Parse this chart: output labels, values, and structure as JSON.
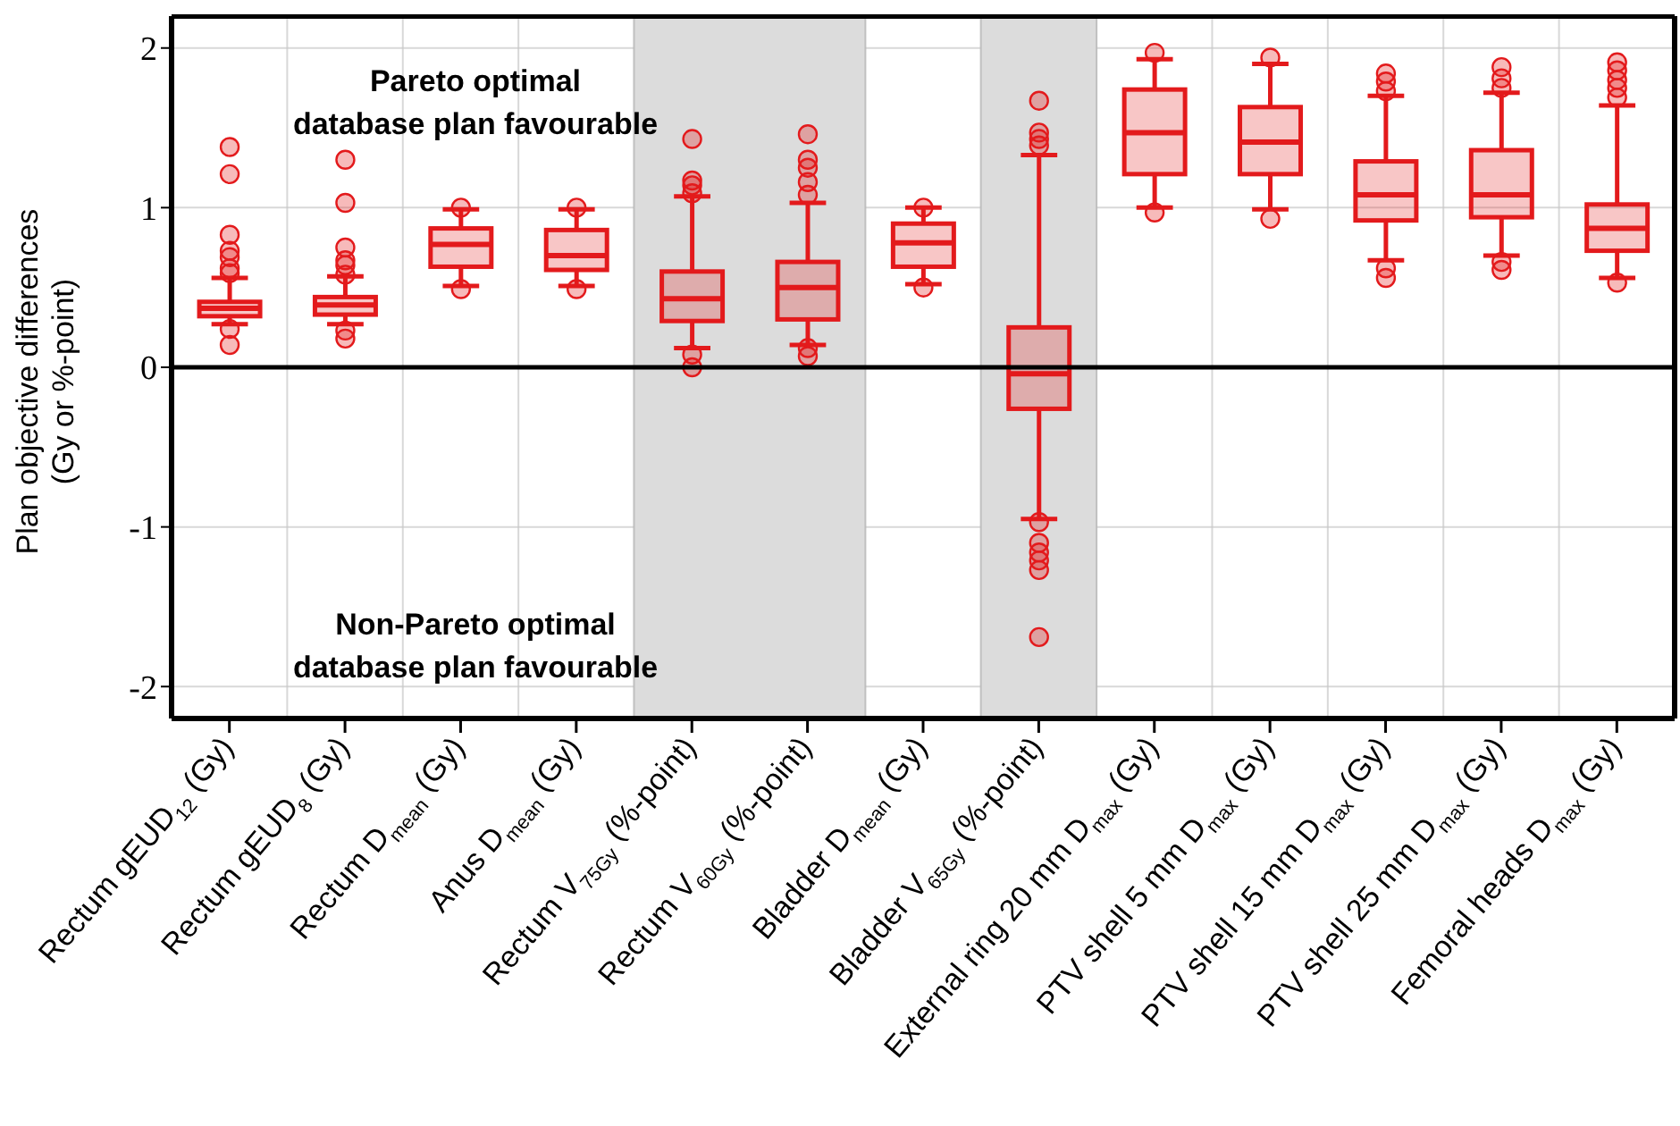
{
  "chart_data": {
    "type": "box",
    "ylabel": "Plan objective differences\n(Gy or %-point)",
    "categories": [
      "Rectum gEUD$_{12}$ (Gy)",
      "Rectum gEUD$_{8}$ (Gy)",
      "Rectum D$_{mean}$ (Gy)",
      "Anus D$_{mean}$ (Gy)",
      "Rectum V$_{75Gy}$ (%-point)",
      "Rectum V$_{60Gy}$ (%-point)",
      "Bladder D$_{mean}$ (Gy)",
      "Bladder V$_{65Gy}$ (%-point)",
      "External ring 20 mm D$_{max}$ (Gy)",
      "PTV shell 5 mm D$_{max}$ (Gy)",
      "PTV shell 15 mm D$_{max}$ (Gy)",
      "PTV shell 25 mm D$_{max}$ (Gy)",
      "Femoral heads D$_{max}$ (Gy)"
    ],
    "series": [
      {
        "color": "#e31a1c",
        "boxes": [
          {
            "low": 0.27,
            "q1": 0.32,
            "median": 0.37,
            "q3": 0.41,
            "high": 0.56,
            "outliers": [
              1.38,
              1.21,
              0.83,
              0.73,
              0.69,
              0.62,
              0.59,
              0.24,
              0.14
            ]
          },
          {
            "low": 0.27,
            "q1": 0.33,
            "median": 0.39,
            "q3": 0.44,
            "high": 0.57,
            "outliers": [
              1.3,
              1.03,
              0.75,
              0.67,
              0.64,
              0.58,
              0.23,
              0.18
            ]
          },
          {
            "low": 0.51,
            "q1": 0.63,
            "median": 0.77,
            "q3": 0.87,
            "high": 0.99,
            "outliers": [
              1.0,
              0.49
            ]
          },
          {
            "low": 0.51,
            "q1": 0.61,
            "median": 0.7,
            "q3": 0.86,
            "high": 0.99,
            "outliers": [
              1.0,
              0.49
            ]
          },
          {
            "low": 0.12,
            "q1": 0.29,
            "median": 0.43,
            "q3": 0.6,
            "high": 1.07,
            "outliers": [
              1.43,
              1.17,
              1.14,
              1.09,
              0.08,
              0.0
            ]
          },
          {
            "low": 0.14,
            "q1": 0.3,
            "median": 0.5,
            "q3": 0.66,
            "high": 1.03,
            "outliers": [
              1.46,
              1.3,
              1.25,
              1.16,
              1.08,
              0.12,
              0.07
            ]
          },
          {
            "low": 0.52,
            "q1": 0.63,
            "median": 0.78,
            "q3": 0.9,
            "high": 1.0,
            "outliers": [
              1.0,
              0.5
            ]
          },
          {
            "low": -0.95,
            "q1": -0.26,
            "median": -0.04,
            "q3": 0.25,
            "high": 1.33,
            "outliers": [
              1.67,
              1.47,
              1.43,
              1.39,
              -0.97,
              -1.1,
              -1.16,
              -1.21,
              -1.27,
              -1.69
            ]
          },
          {
            "low": 1.0,
            "q1": 1.21,
            "median": 1.47,
            "q3": 1.74,
            "high": 1.93,
            "outliers": [
              1.97,
              0.97
            ]
          },
          {
            "low": 0.99,
            "q1": 1.21,
            "median": 1.41,
            "q3": 1.63,
            "high": 1.9,
            "outliers": [
              1.94,
              0.93
            ]
          },
          {
            "low": 0.67,
            "q1": 0.92,
            "median": 1.08,
            "q3": 1.29,
            "high": 1.7,
            "outliers": [
              1.84,
              1.79,
              1.73,
              0.62,
              0.56
            ]
          },
          {
            "low": 0.7,
            "q1": 0.94,
            "median": 1.08,
            "q3": 1.36,
            "high": 1.72,
            "outliers": [
              1.88,
              1.81,
              1.75,
              0.66,
              0.61
            ]
          },
          {
            "low": 0.56,
            "q1": 0.73,
            "median": 0.87,
            "q3": 1.02,
            "high": 1.64,
            "outliers": [
              1.91,
              1.86,
              1.8,
              1.75,
              1.69,
              0.53
            ]
          }
        ]
      }
    ],
    "ylim": [
      -2.2,
      2.2
    ],
    "yticks": [
      -2,
      -1,
      0,
      1,
      2
    ],
    "grid": true,
    "ref_lines": [
      {
        "axis": "y",
        "value": 0,
        "color": "#000000"
      }
    ],
    "bands": [
      {
        "axis": "x",
        "from": "Rectum V$_{75Gy}$ (%-point)",
        "to": "Rectum V$_{60Gy}$ (%-point)",
        "color": "#dcdcdc"
      },
      {
        "axis": "x",
        "from": "Bladder V$_{65Gy}$ (%-point)",
        "to": "Bladder V$_{65Gy}$ (%-point)",
        "color": "#dcdcdc"
      }
    ],
    "annotations": [
      "Pareto optimal\ndatabase plan favourable",
      "Non-Pareto optimal\ndatabase plan favourable"
    ]
  }
}
